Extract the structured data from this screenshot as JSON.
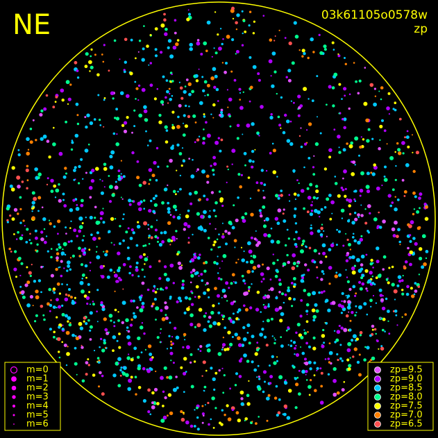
{
  "title": "NE",
  "frame_id": "03k61105o0578w",
  "mode": "zp",
  "magnitude_legend": [
    "m=0",
    "m=1",
    "m=2",
    "m=3",
    "m=4",
    "m=5",
    "m=6"
  ],
  "zp_legend": [
    {
      "label": "zp=9.5",
      "color": "#e050ff"
    },
    {
      "label": "zp=9.0",
      "color": "#b000ff"
    },
    {
      "label": "zp=8.5",
      "color": "#00c8ff"
    },
    {
      "label": "zp=8.0",
      "color": "#00ff90"
    },
    {
      "label": "zp=7.5",
      "color": "#ffff00"
    },
    {
      "label": "zp=7.0",
      "color": "#ff8000"
    },
    {
      "label": "zp=6.5",
      "color": "#ff5050"
    }
  ]
}
